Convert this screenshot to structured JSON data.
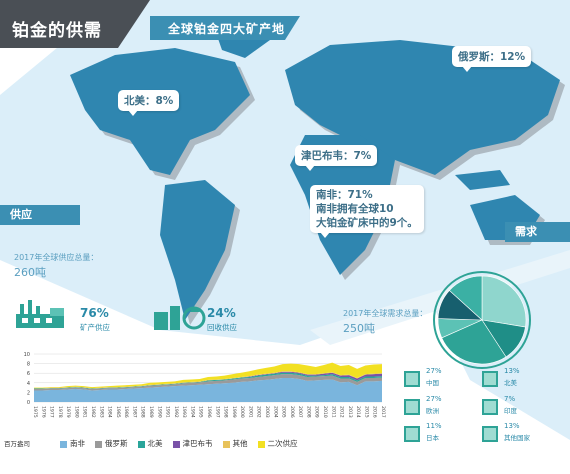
{
  "header": {
    "title": "铂金的供需",
    "map_banner": "全球铂金四大矿产地"
  },
  "regions": [
    {
      "id": "north-america",
      "label": "北美：8%"
    },
    {
      "id": "russia",
      "label": "俄罗斯：12%"
    },
    {
      "id": "zimbabwe",
      "label": "津巴布韦：7%"
    },
    {
      "id": "south-africa",
      "line1": "南非：71%",
      "line2": "南非拥有全球10",
      "line3": "大铂金矿床中的9个。"
    }
  ],
  "supply": {
    "tag": "供应",
    "total_caption": "2017年全球供应总量：",
    "total_value": "260吨",
    "mine": {
      "pct": "76%",
      "label": "矿产供应"
    },
    "recycle": {
      "pct": "24%",
      "label": "回收供应"
    }
  },
  "demand": {
    "tag": "需求",
    "total_caption": "2017年全球需求总量：",
    "total_value": "250吨",
    "items": [
      {
        "pct": "27%",
        "name": "中国"
      },
      {
        "pct": "13%",
        "name": "北美"
      },
      {
        "pct": "27%",
        "name": "欧洲"
      },
      {
        "pct": "7%",
        "name": "印度"
      },
      {
        "pct": "11%",
        "name": "日本"
      },
      {
        "pct": "13%",
        "name": "其他国家"
      }
    ]
  },
  "chart_data": [
    {
      "type": "area",
      "unit_label": "百万盎司",
      "x": [
        "1975",
        "1976",
        "1977",
        "1978",
        "1979",
        "1980",
        "1981",
        "1982",
        "1983",
        "1984",
        "1985",
        "1986",
        "1987",
        "1988",
        "1989",
        "1990",
        "1991",
        "1992",
        "1993",
        "1994",
        "1995",
        "1996",
        "1997",
        "1998",
        "1999",
        "2000",
        "2001",
        "2002",
        "2003",
        "2004",
        "2005",
        "2006",
        "2007",
        "2008",
        "2009",
        "2010",
        "2011",
        "2012",
        "2013",
        "2014",
        "2015",
        "2016",
        "2017"
      ],
      "ylim": [
        0,
        10
      ],
      "yticks": [
        "0",
        "2",
        "4",
        "6",
        "8",
        "10"
      ],
      "legend": [
        "南非",
        "俄罗斯",
        "北美",
        "津巴布韦",
        "其他",
        "二次供应"
      ],
      "colors": [
        "#7ab5dd",
        "#9a9a9a",
        "#2aa59a",
        "#7a52a8",
        "#e8c25a",
        "#f2e022"
      ],
      "series": [
        {
          "name": "南非",
          "values": [
            2.4,
            2.4,
            2.5,
            2.5,
            2.6,
            2.7,
            2.6,
            2.4,
            2.5,
            2.6,
            2.6,
            2.7,
            2.8,
            2.9,
            3.0,
            3.1,
            3.2,
            3.3,
            3.4,
            3.5,
            3.6,
            3.7,
            3.8,
            3.9,
            4.0,
            4.2,
            4.3,
            4.5,
            4.6,
            4.8,
            5.0,
            5.0,
            4.8,
            4.4,
            4.5,
            4.6,
            4.7,
            4.1,
            4.2,
            3.5,
            4.3,
            4.3,
            4.4
          ]
        },
        {
          "name": "俄罗斯",
          "values": [
            0.3,
            0.3,
            0.3,
            0.3,
            0.3,
            0.3,
            0.3,
            0.3,
            0.3,
            0.3,
            0.3,
            0.3,
            0.3,
            0.3,
            0.4,
            0.4,
            0.4,
            0.4,
            0.5,
            0.5,
            0.5,
            0.6,
            0.6,
            0.6,
            0.7,
            0.7,
            0.7,
            0.7,
            0.8,
            0.8,
            0.8,
            0.8,
            0.8,
            0.8,
            0.8,
            0.8,
            0.8,
            0.8,
            0.7,
            0.7,
            0.7,
            0.7,
            0.7
          ]
        },
        {
          "name": "北美",
          "values": [
            0.1,
            0.1,
            0.1,
            0.1,
            0.1,
            0.1,
            0.1,
            0.1,
            0.1,
            0.1,
            0.1,
            0.1,
            0.1,
            0.1,
            0.1,
            0.1,
            0.1,
            0.1,
            0.1,
            0.1,
            0.1,
            0.2,
            0.2,
            0.2,
            0.2,
            0.2,
            0.2,
            0.3,
            0.3,
            0.3,
            0.3,
            0.3,
            0.3,
            0.3,
            0.2,
            0.2,
            0.3,
            0.3,
            0.3,
            0.3,
            0.3,
            0.3,
            0.3
          ]
        },
        {
          "name": "津巴布韦",
          "values": [
            0.0,
            0.0,
            0.0,
            0.0,
            0.0,
            0.0,
            0.0,
            0.0,
            0.0,
            0.0,
            0.0,
            0.0,
            0.0,
            0.0,
            0.0,
            0.0,
            0.0,
            0.0,
            0.0,
            0.0,
            0.0,
            0.0,
            0.0,
            0.0,
            0.0,
            0.0,
            0.1,
            0.1,
            0.1,
            0.1,
            0.2,
            0.2,
            0.2,
            0.2,
            0.2,
            0.3,
            0.3,
            0.3,
            0.4,
            0.4,
            0.4,
            0.5,
            0.5
          ]
        },
        {
          "name": "其他",
          "values": [
            0.1,
            0.1,
            0.1,
            0.1,
            0.1,
            0.1,
            0.1,
            0.1,
            0.1,
            0.1,
            0.1,
            0.1,
            0.1,
            0.1,
            0.1,
            0.1,
            0.1,
            0.1,
            0.1,
            0.1,
            0.1,
            0.1,
            0.1,
            0.1,
            0.1,
            0.1,
            0.1,
            0.1,
            0.1,
            0.1,
            0.1,
            0.1,
            0.1,
            0.1,
            0.1,
            0.1,
            0.1,
            0.1,
            0.1,
            0.1,
            0.1,
            0.1,
            0.1
          ]
        },
        {
          "name": "二次供应",
          "values": [
            0.1,
            0.1,
            0.1,
            0.1,
            0.2,
            0.2,
            0.2,
            0.2,
            0.2,
            0.2,
            0.3,
            0.3,
            0.3,
            0.3,
            0.4,
            0.4,
            0.4,
            0.4,
            0.5,
            0.5,
            0.5,
            0.6,
            0.6,
            0.7,
            0.8,
            0.9,
            1.0,
            1.1,
            1.2,
            1.3,
            1.5,
            1.6,
            1.7,
            1.8,
            1.5,
            1.7,
            2.0,
            1.9,
            2.0,
            1.9,
            1.8,
            1.9,
            1.9
          ]
        }
      ]
    },
    {
      "type": "pie",
      "title": "2017年全球需求总量：250吨",
      "categories": [
        "中国",
        "北美",
        "欧洲",
        "印度",
        "日本",
        "其他国家"
      ],
      "values": [
        27,
        13,
        27,
        7,
        11,
        13
      ],
      "colors": [
        "#8fd6cd",
        "#1f8e87",
        "#2ea396",
        "#5cc2b5",
        "#175f6e",
        "#3bb0a4"
      ]
    }
  ]
}
